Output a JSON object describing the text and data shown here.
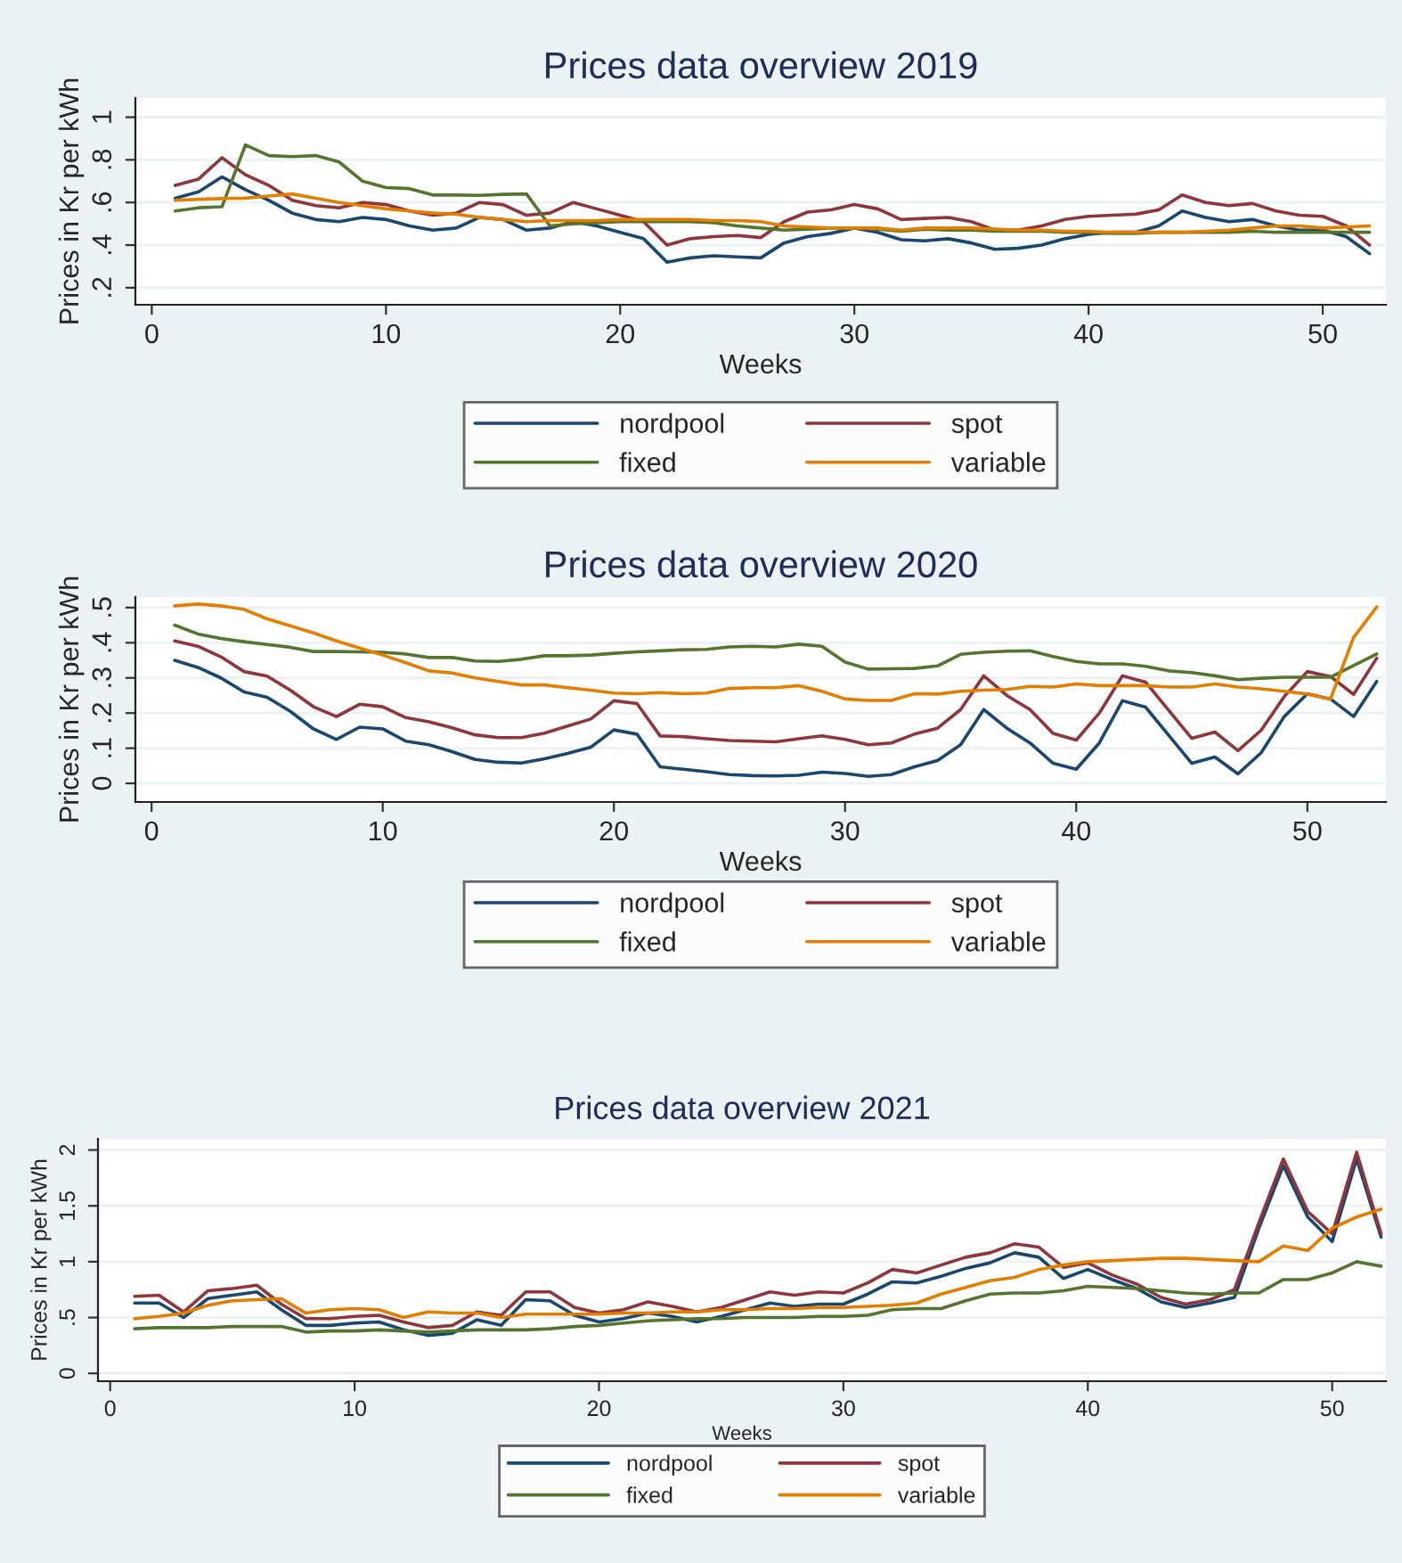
{
  "chart_data": [
    {
      "type": "line",
      "title": "Prices data overview 2019",
      "xlabel": "Weeks",
      "ylabel": "Prices in Kr per kWh",
      "x": [
        1,
        2,
        3,
        4,
        5,
        6,
        7,
        8,
        9,
        10,
        11,
        12,
        13,
        14,
        15,
        16,
        17,
        18,
        19,
        20,
        21,
        22,
        23,
        24,
        25,
        26,
        27,
        28,
        29,
        30,
        31,
        32,
        33,
        34,
        35,
        36,
        37,
        38,
        39,
        40,
        41,
        42,
        43,
        44,
        45,
        46,
        47,
        48,
        49,
        50,
        51,
        52
      ],
      "series": [
        {
          "name": "nordpool",
          "color": "#1a476f",
          "values": [
            0.62,
            0.65,
            0.72,
            0.66,
            0.61,
            0.55,
            0.52,
            0.51,
            0.53,
            0.52,
            0.49,
            0.47,
            0.48,
            0.53,
            0.52,
            0.47,
            0.48,
            0.51,
            0.49,
            0.46,
            0.43,
            0.32,
            0.34,
            0.35,
            0.345,
            0.34,
            0.41,
            0.44,
            0.455,
            0.48,
            0.46,
            0.425,
            0.42,
            0.43,
            0.41,
            0.38,
            0.385,
            0.4,
            0.43,
            0.45,
            0.46,
            0.46,
            0.49,
            0.56,
            0.53,
            0.51,
            0.52,
            0.49,
            0.47,
            0.47,
            0.44,
            0.36
          ]
        },
        {
          "name": "spot",
          "color": "#90353b",
          "values": [
            0.68,
            0.71,
            0.81,
            0.73,
            0.68,
            0.61,
            0.585,
            0.575,
            0.6,
            0.59,
            0.56,
            0.54,
            0.55,
            0.6,
            0.59,
            0.54,
            0.55,
            0.6,
            0.57,
            0.54,
            0.51,
            0.4,
            0.43,
            0.44,
            0.445,
            0.435,
            0.51,
            0.555,
            0.565,
            0.59,
            0.57,
            0.52,
            0.525,
            0.53,
            0.51,
            0.47,
            0.47,
            0.49,
            0.52,
            0.535,
            0.54,
            0.545,
            0.565,
            0.635,
            0.6,
            0.585,
            0.595,
            0.56,
            0.54,
            0.535,
            0.49,
            0.4
          ]
        },
        {
          "name": "fixed",
          "color": "#55752f",
          "values": [
            0.56,
            0.575,
            0.58,
            0.87,
            0.82,
            0.815,
            0.82,
            0.79,
            0.7,
            0.67,
            0.665,
            0.635,
            0.635,
            0.633,
            0.638,
            0.64,
            0.49,
            0.5,
            0.505,
            0.51,
            0.51,
            0.51,
            0.51,
            0.505,
            0.49,
            0.48,
            0.47,
            0.475,
            0.48,
            0.48,
            0.475,
            0.465,
            0.475,
            0.47,
            0.47,
            0.465,
            0.465,
            0.465,
            0.46,
            0.46,
            0.455,
            0.455,
            0.46,
            0.46,
            0.46,
            0.46,
            0.465,
            0.46,
            0.46,
            0.46,
            0.46,
            0.46
          ]
        },
        {
          "name": "variable",
          "color": "#e37e00",
          "values": [
            0.61,
            0.615,
            0.618,
            0.62,
            0.63,
            0.64,
            0.62,
            0.6,
            0.585,
            0.57,
            0.56,
            0.55,
            0.545,
            0.53,
            0.52,
            0.51,
            0.515,
            0.515,
            0.515,
            0.52,
            0.52,
            0.52,
            0.52,
            0.515,
            0.515,
            0.51,
            0.49,
            0.485,
            0.48,
            0.48,
            0.48,
            0.47,
            0.48,
            0.48,
            0.48,
            0.475,
            0.47,
            0.47,
            0.465,
            0.465,
            0.46,
            0.46,
            0.46,
            0.46,
            0.465,
            0.47,
            0.48,
            0.49,
            0.49,
            0.48,
            0.485,
            0.49
          ]
        }
      ],
      "xlim": [
        -0.7,
        52.7
      ],
      "ylim": [
        0.12,
        1.09
      ],
      "xticks": [
        0,
        10,
        20,
        30,
        40,
        50
      ],
      "yticks": [
        {
          "value": 0.2,
          "label": ".2"
        },
        {
          "value": 0.4,
          "label": ".4"
        },
        {
          "value": 0.6,
          "label": ".6"
        },
        {
          "value": 0.8,
          "label": ".8"
        },
        {
          "value": 1,
          "label": "1"
        }
      ],
      "grid": "y",
      "legend": "bottom",
      "line_style": "solid"
    },
    {
      "type": "line",
      "title": "Prices data overview 2020",
      "xlabel": "Weeks",
      "ylabel": "Prices in Kr per kWh",
      "x": [
        1,
        2,
        3,
        4,
        5,
        6,
        7,
        8,
        9,
        10,
        11,
        12,
        13,
        14,
        15,
        16,
        17,
        18,
        19,
        20,
        21,
        22,
        23,
        24,
        25,
        26,
        27,
        28,
        29,
        30,
        31,
        32,
        33,
        34,
        35,
        36,
        37,
        38,
        39,
        40,
        41,
        42,
        43,
        44,
        45,
        46,
        47,
        48,
        49,
        50,
        51,
        52,
        53
      ],
      "series": [
        {
          "name": "nordpool",
          "color": "#1a476f",
          "values": [
            0.35,
            0.33,
            0.3,
            0.26,
            0.245,
            0.205,
            0.155,
            0.125,
            0.16,
            0.155,
            0.12,
            0.11,
            0.09,
            0.068,
            0.06,
            0.058,
            0.07,
            0.085,
            0.103,
            0.152,
            0.14,
            0.047,
            0.04,
            0.033,
            0.025,
            0.022,
            0.021,
            0.023,
            0.032,
            0.028,
            0.02,
            0.025,
            0.047,
            0.065,
            0.11,
            0.21,
            0.157,
            0.115,
            0.057,
            0.04,
            0.115,
            0.235,
            0.217,
            0.137,
            0.057,
            0.075,
            0.027,
            0.087,
            0.19,
            0.255,
            0.24,
            0.19,
            0.29
          ]
        },
        {
          "name": "spot",
          "color": "#90353b",
          "values": [
            0.405,
            0.39,
            0.36,
            0.318,
            0.305,
            0.265,
            0.218,
            0.19,
            0.225,
            0.218,
            0.187,
            0.175,
            0.158,
            0.138,
            0.13,
            0.13,
            0.143,
            0.163,
            0.183,
            0.235,
            0.227,
            0.135,
            0.133,
            0.127,
            0.122,
            0.12,
            0.118,
            0.127,
            0.135,
            0.125,
            0.11,
            0.115,
            0.14,
            0.157,
            0.21,
            0.306,
            0.25,
            0.21,
            0.142,
            0.123,
            0.2,
            0.306,
            0.288,
            0.208,
            0.128,
            0.146,
            0.093,
            0.151,
            0.247,
            0.318,
            0.304,
            0.253,
            0.356
          ]
        },
        {
          "name": "fixed",
          "color": "#55752f",
          "values": [
            0.45,
            0.425,
            0.412,
            0.403,
            0.395,
            0.387,
            0.375,
            0.375,
            0.374,
            0.373,
            0.368,
            0.358,
            0.358,
            0.348,
            0.347,
            0.353,
            0.363,
            0.363,
            0.365,
            0.37,
            0.374,
            0.377,
            0.38,
            0.381,
            0.388,
            0.39,
            0.388,
            0.396,
            0.39,
            0.345,
            0.325,
            0.326,
            0.327,
            0.334,
            0.367,
            0.373,
            0.376,
            0.377,
            0.361,
            0.347,
            0.34,
            0.34,
            0.333,
            0.32,
            0.315,
            0.306,
            0.295,
            0.299,
            0.302,
            0.302,
            0.302,
            0.335,
            0.368
          ]
        },
        {
          "name": "variable",
          "color": "#e37e00",
          "values": [
            0.505,
            0.51,
            0.505,
            0.495,
            0.468,
            0.448,
            0.428,
            0.405,
            0.385,
            0.365,
            0.343,
            0.32,
            0.314,
            0.3,
            0.29,
            0.28,
            0.28,
            0.272,
            0.265,
            0.257,
            0.255,
            0.258,
            0.255,
            0.257,
            0.27,
            0.272,
            0.272,
            0.278,
            0.262,
            0.24,
            0.236,
            0.236,
            0.255,
            0.254,
            0.262,
            0.265,
            0.267,
            0.276,
            0.274,
            0.283,
            0.278,
            0.278,
            0.278,
            0.274,
            0.274,
            0.283,
            0.274,
            0.269,
            0.262,
            0.254,
            0.24,
            0.415,
            0.502
          ]
        }
      ],
      "xlim": [
        -0.7,
        53.4
      ],
      "ylim": [
        -0.053,
        0.53
      ],
      "xticks": [
        0,
        10,
        20,
        30,
        40,
        50
      ],
      "yticks": [
        0,
        {
          "value": 0.1,
          "label": ".1"
        },
        {
          "value": 0.2,
          "label": ".2"
        },
        {
          "value": 0.3,
          "label": ".3"
        },
        {
          "value": 0.4,
          "label": ".4"
        },
        {
          "value": 0.5,
          "label": ".5"
        }
      ],
      "grid": "y",
      "legend": "bottom",
      "line_style": "solid"
    },
    {
      "type": "line",
      "title": "Prices data overview 2021",
      "xlabel": "Weeks",
      "ylabel": "Prices in Kr per kWh",
      "x": [
        1,
        2,
        3,
        4,
        5,
        6,
        7,
        8,
        9,
        10,
        11,
        12,
        13,
        14,
        15,
        16,
        17,
        18,
        19,
        20,
        21,
        22,
        23,
        24,
        25,
        26,
        27,
        28,
        29,
        30,
        31,
        32,
        33,
        34,
        35,
        36,
        37,
        38,
        39,
        40,
        41,
        42,
        43,
        44,
        45,
        46,
        47,
        48,
        49,
        50,
        51,
        52
      ],
      "series": [
        {
          "name": "nordpool",
          "color": "#1a476f",
          "values": [
            0.63,
            0.63,
            0.5,
            0.67,
            0.7,
            0.73,
            0.57,
            0.43,
            0.43,
            0.45,
            0.46,
            0.39,
            0.34,
            0.36,
            0.48,
            0.43,
            0.66,
            0.65,
            0.52,
            0.46,
            0.49,
            0.54,
            0.51,
            0.46,
            0.51,
            0.57,
            0.63,
            0.6,
            0.62,
            0.62,
            0.71,
            0.82,
            0.81,
            0.87,
            0.94,
            0.99,
            1.08,
            1.04,
            0.85,
            0.93,
            0.84,
            0.76,
            0.64,
            0.59,
            0.63,
            0.68,
            1.3,
            1.86,
            1.4,
            1.18,
            1.92,
            1.22
          ]
        },
        {
          "name": "spot",
          "color": "#90353b",
          "values": [
            0.69,
            0.7,
            0.55,
            0.74,
            0.76,
            0.79,
            0.62,
            0.49,
            0.49,
            0.51,
            0.52,
            0.46,
            0.41,
            0.43,
            0.55,
            0.52,
            0.73,
            0.73,
            0.59,
            0.54,
            0.57,
            0.64,
            0.6,
            0.55,
            0.59,
            0.66,
            0.73,
            0.7,
            0.73,
            0.72,
            0.81,
            0.93,
            0.9,
            0.97,
            1.04,
            1.08,
            1.16,
            1.13,
            0.95,
            0.99,
            0.88,
            0.8,
            0.68,
            0.62,
            0.66,
            0.75,
            1.35,
            1.92,
            1.45,
            1.25,
            1.98,
            1.25
          ]
        },
        {
          "name": "fixed",
          "color": "#55752f",
          "values": [
            0.4,
            0.41,
            0.41,
            0.41,
            0.42,
            0.42,
            0.42,
            0.37,
            0.38,
            0.38,
            0.39,
            0.38,
            0.37,
            0.38,
            0.39,
            0.39,
            0.39,
            0.4,
            0.42,
            0.43,
            0.45,
            0.47,
            0.48,
            0.49,
            0.49,
            0.5,
            0.5,
            0.5,
            0.51,
            0.51,
            0.52,
            0.57,
            0.58,
            0.58,
            0.65,
            0.71,
            0.72,
            0.72,
            0.74,
            0.78,
            0.77,
            0.76,
            0.74,
            0.72,
            0.71,
            0.72,
            0.72,
            0.84,
            0.84,
            0.9,
            1.0,
            0.96
          ]
        },
        {
          "name": "variable",
          "color": "#e37e00",
          "values": [
            0.49,
            0.51,
            0.54,
            0.61,
            0.65,
            0.66,
            0.67,
            0.54,
            0.57,
            0.58,
            0.57,
            0.5,
            0.55,
            0.54,
            0.54,
            0.5,
            0.53,
            0.53,
            0.53,
            0.53,
            0.54,
            0.54,
            0.55,
            0.55,
            0.57,
            0.57,
            0.58,
            0.58,
            0.59,
            0.59,
            0.6,
            0.61,
            0.63,
            0.71,
            0.77,
            0.83,
            0.86,
            0.93,
            0.97,
            1.0,
            1.01,
            1.02,
            1.03,
            1.03,
            1.02,
            1.01,
            1.0,
            1.14,
            1.1,
            1.3,
            1.4,
            1.47
          ]
        }
      ],
      "xlim": [
        -0.5,
        52.2
      ],
      "ylim": [
        -0.07,
        2.1
      ],
      "xticks": [
        0,
        10,
        20,
        30,
        40,
        50
      ],
      "yticks": [
        0,
        {
          "value": 0.5,
          "label": ".5"
        },
        1,
        {
          "value": 1.5,
          "label": "1.5"
        },
        2
      ],
      "grid": "y",
      "legend": "bottom",
      "line_style": "solid"
    }
  ]
}
